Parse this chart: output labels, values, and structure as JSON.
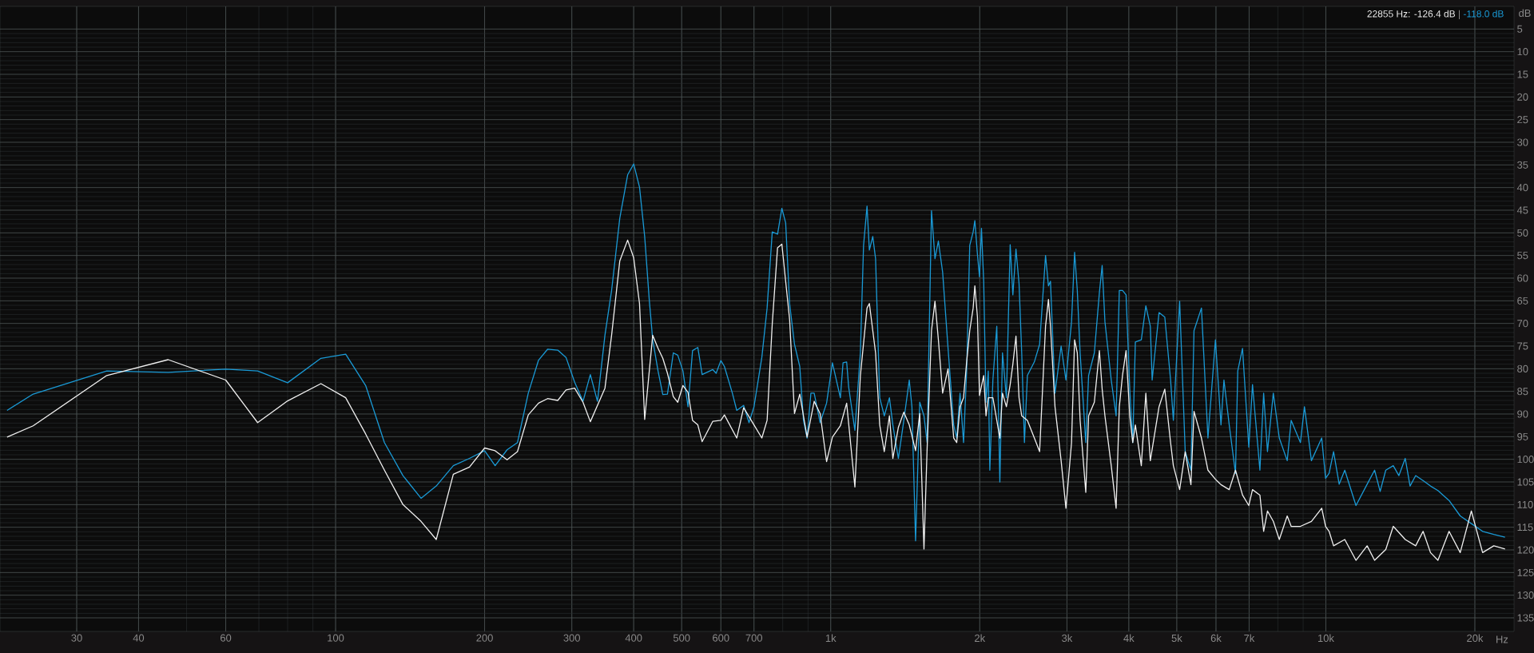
{
  "chart_data": {
    "type": "line",
    "xlabel": "Hz",
    "ylabel": "dB",
    "log": "x",
    "grid": true,
    "annotations": [
      "22855 Hz: -126.4 dB",
      "|",
      "-118.0 dB"
    ],
    "xlim": [
      21,
      24000
    ],
    "ylim": [
      -138,
      0
    ],
    "xticks": [
      30,
      40,
      60,
      100,
      200,
      300,
      400,
      500,
      600,
      700,
      {
        "value": 1000,
        "label": "1k"
      },
      {
        "value": 2000,
        "label": "2k"
      },
      {
        "value": 3000,
        "label": "3k"
      },
      {
        "value": 4000,
        "label": "4k"
      },
      {
        "value": 5000,
        "label": "5k"
      },
      {
        "value": 6000,
        "label": "6k"
      },
      {
        "value": 7000,
        "label": "7k"
      },
      {
        "value": 10000,
        "label": "10k"
      },
      {
        "value": 20000,
        "label": "20k"
      }
    ],
    "yticks": [
      {
        "value": -5,
        "label": "5"
      },
      {
        "value": -10,
        "label": "10"
      },
      {
        "value": -15,
        "label": "15"
      },
      {
        "value": -20,
        "label": "20"
      },
      {
        "value": -25,
        "label": "25"
      },
      {
        "value": -30,
        "label": "30"
      },
      {
        "value": -35,
        "label": "35"
      },
      {
        "value": -40,
        "label": "40"
      },
      {
        "value": -45,
        "label": "45"
      },
      {
        "value": -50,
        "label": "50"
      },
      {
        "value": -55,
        "label": "55"
      },
      {
        "value": -60,
        "label": "60"
      },
      {
        "value": -65,
        "label": "65"
      },
      {
        "value": -70,
        "label": "70"
      },
      {
        "value": -75,
        "label": "75"
      },
      {
        "value": -80,
        "label": "80"
      },
      {
        "value": -85,
        "label": "85"
      },
      {
        "value": -90,
        "label": "90"
      },
      {
        "value": -95,
        "label": "95"
      },
      {
        "value": -100,
        "label": "100"
      },
      {
        "value": -105,
        "label": "105"
      },
      {
        "value": -110,
        "label": "110"
      },
      {
        "value": -115,
        "label": "115"
      },
      {
        "value": -120,
        "label": "120"
      },
      {
        "value": -125,
        "label": "125"
      },
      {
        "value": -130,
        "label": "130"
      },
      {
        "value": -135,
        "label": "135"
      }
    ],
    "series": [
      {
        "color": "#1a9ad6",
        "x": [
          21.7,
          24.5,
          34.5,
          45.9,
          60,
          69.6,
          80,
          93.4,
          104.8,
          115,
          125.5,
          136.8,
          148.8,
          159.7,
          172.9,
          186.4,
          200,
          210,
          222,
          233,
          245,
          257,
          268,
          281,
          292,
          304,
          316,
          327,
          338,
          350,
          361,
          375,
          389,
          400,
          411,
          421,
          430,
          437,
          448,
          458,
          468,
          481,
          491,
          503,
          515,
          526,
          539,
          550,
          578,
          587,
          600,
          610,
          633,
          646,
          667,
          684,
          700,
          726,
          744,
          762,
          781,
          797,
          811,
          826,
          845,
          866,
          881,
          896,
          912,
          926,
          952,
          981,
          1008,
          1046,
          1059,
          1077,
          1087,
          1119,
          1148,
          1165,
          1184,
          1197,
          1216,
          1232,
          1256,
          1283,
          1314,
          1335,
          1370,
          1405,
          1441,
          1459,
          1484,
          1513,
          1543,
          1566,
          1598,
          1624,
          1650,
          1683,
          1726,
          1772,
          1797,
          1825,
          1855,
          1882,
          1909,
          1940,
          1955,
          1979,
          1998,
          2016,
          2037,
          2059,
          2081,
          2096,
          2126,
          2165,
          2196,
          2223,
          2264,
          2304,
          2333,
          2367,
          2401,
          2431,
          2462,
          2496,
          2578,
          2642,
          2716,
          2753,
          2779,
          2838,
          2920,
          2986,
          3065,
          3109,
          3148,
          3190,
          3275,
          3318,
          3408,
          3489,
          3534,
          3580,
          3687,
          3771,
          3828,
          3885,
          3950,
          4018,
          4074,
          4124,
          4240,
          4330,
          4421,
          4459,
          4604,
          4729,
          4858,
          4921,
          5067,
          5200,
          5340,
          5417,
          5608,
          5780,
          5985,
          6141,
          6227,
          6381,
          6570,
          6640,
          6788,
          6990,
          7111,
          7360,
          7490,
          7624,
          7834,
          8054,
          8356,
          8512,
          8887,
          9054,
          9352,
          9811,
          9990,
          10154,
          10367,
          10641,
          10921,
          11505,
          12118,
          12546,
          12874,
          13215,
          13684,
          14047,
          14468,
          14797,
          15187,
          15720,
          16272,
          16844,
          17740,
          18684,
          19679,
          20733,
          21841,
          23010
        ],
        "values": [
          -89.2,
          -85.6,
          -80.5,
          -80.8,
          -80.1,
          -80.5,
          -83.1,
          -77.7,
          -76.8,
          -83.7,
          -96.3,
          -103.6,
          -108.6,
          -105.9,
          -101.4,
          -99.8,
          -98.1,
          -101.4,
          -97.9,
          -96.3,
          -85.4,
          -78.1,
          -75.7,
          -75.9,
          -77.5,
          -83.0,
          -87.2,
          -81.3,
          -87.2,
          -72.6,
          -62.7,
          -46.8,
          -37.2,
          -34.8,
          -39.9,
          -50.8,
          -64.7,
          -73.6,
          -80.5,
          -85.7,
          -85.6,
          -76.5,
          -77.0,
          -80.5,
          -88.4,
          -76.0,
          -75.3,
          -81.3,
          -80.2,
          -81.0,
          -78.2,
          -79.5,
          -85.4,
          -89.2,
          -88.1,
          -91.9,
          -88.4,
          -77.5,
          -66.6,
          -49.8,
          -50.3,
          -44.6,
          -47.8,
          -65.6,
          -74.6,
          -79.5,
          -91.4,
          -95.3,
          -85.4,
          -85.4,
          -91.9,
          -87.6,
          -78.7,
          -86.4,
          -78.7,
          -78.5,
          -84.0,
          -93.6,
          -76.5,
          -52.8,
          -44.1,
          -53.8,
          -50.8,
          -55.7,
          -86.4,
          -90.4,
          -86.4,
          -92.4,
          -99.8,
          -91.4,
          -82.5,
          -88.4,
          -118.0,
          -87.4,
          -90.4,
          -96.3,
          -45.1,
          -55.7,
          -51.8,
          -58.7,
          -75.5,
          -92.4,
          -95.3,
          -85.4,
          -96.3,
          -80.5,
          -52.8,
          -49.8,
          -47.3,
          -54.8,
          -59.7,
          -49.0,
          -60.7,
          -87.4,
          -80.5,
          -102.4,
          -82.5,
          -70.6,
          -105.0,
          -76.5,
          -86.4,
          -52.6,
          -63.7,
          -53.6,
          -61.2,
          -76.5,
          -96.3,
          -81.5,
          -78.5,
          -74.6,
          -55.0,
          -61.7,
          -60.7,
          -85.4,
          -75.0,
          -82.5,
          -69.6,
          -54.3,
          -62.7,
          -76.5,
          -96.3,
          -81.5,
          -76.5,
          -63.2,
          -57.2,
          -69.6,
          -82.5,
          -90.4,
          -62.7,
          -62.7,
          -63.7,
          -84.5,
          -96.3,
          -74.1,
          -73.6,
          -66.1,
          -70.6,
          -82.5,
          -67.6,
          -68.6,
          -82.5,
          -91.4,
          -65.1,
          -98.3,
          -102.4,
          -71.6,
          -66.6,
          -95.3,
          -73.6,
          -92.4,
          -82.5,
          -92.4,
          -103.1,
          -80.5,
          -75.5,
          -97.3,
          -83.5,
          -102.4,
          -85.4,
          -98.3,
          -85.4,
          -95.3,
          -100.3,
          -91.4,
          -96.3,
          -88.4,
          -100.3,
          -95.3,
          -104.2,
          -103.1,
          -98.3,
          -105.5,
          -102.4,
          -110.2,
          -105.5,
          -102.4,
          -107.1,
          -102.4,
          -101.4,
          -103.6,
          -99.8,
          -105.9,
          -103.6,
          -104.7,
          -105.9,
          -106.9,
          -109.1,
          -112.5,
          -114.2,
          -115.9,
          -116.6,
          -117.2
        ]
      },
      {
        "color": "#f0f0f0",
        "x": [
          21.7,
          24.5,
          34.5,
          45.9,
          60,
          69.6,
          80,
          93.4,
          104.8,
          115,
          125.5,
          136.8,
          148.8,
          159.7,
          172.9,
          186.4,
          200,
          210,
          222,
          233,
          245,
          257,
          268,
          281,
          292,
          304,
          316,
          327,
          350,
          361,
          375,
          389,
          400,
          411,
          421,
          437,
          448,
          458,
          468,
          481,
          491,
          503,
          515,
          526,
          539,
          550,
          578,
          600,
          610,
          646,
          667,
          700,
          726,
          744,
          762,
          781,
          797,
          811,
          826,
          845,
          866,
          881,
          896,
          926,
          952,
          981,
          1008,
          1046,
          1077,
          1119,
          1148,
          1184,
          1197,
          1232,
          1256,
          1283,
          1314,
          1335,
          1370,
          1405,
          1441,
          1484,
          1513,
          1543,
          1566,
          1598,
          1624,
          1650,
          1683,
          1726,
          1772,
          1797,
          1825,
          1855,
          1882,
          1909,
          1940,
          1955,
          1979,
          1998,
          2037,
          2059,
          2081,
          2126,
          2165,
          2196,
          2223,
          2264,
          2304,
          2333,
          2367,
          2401,
          2431,
          2496,
          2578,
          2642,
          2716,
          2753,
          2779,
          2838,
          2920,
          2986,
          3065,
          3109,
          3148,
          3190,
          3275,
          3318,
          3408,
          3489,
          3534,
          3580,
          3687,
          3771,
          3828,
          3885,
          3950,
          4018,
          4074,
          4124,
          4240,
          4330,
          4421,
          4604,
          4729,
          4858,
          4921,
          5067,
          5200,
          5340,
          5417,
          5608,
          5780,
          5985,
          6141,
          6381,
          6570,
          6788,
          6990,
          7111,
          7360,
          7490,
          7624,
          7834,
          8054,
          8356,
          8512,
          8887,
          9352,
          9811,
          9990,
          10154,
          10367,
          10921,
          11505,
          12118,
          12546,
          13215,
          13684,
          14468,
          15187,
          15720,
          16272,
          16844,
          17740,
          18684,
          19679,
          20733,
          21841,
          23010
        ],
        "values": [
          -95.1,
          -92.6,
          -81.5,
          -78.0,
          -82.5,
          -91.9,
          -87.1,
          -83.3,
          -86.4,
          -94.4,
          -102.4,
          -110.0,
          -113.7,
          -117.7,
          -103.3,
          -101.7,
          -97.5,
          -98.1,
          -100.1,
          -98.3,
          -90.2,
          -87.6,
          -86.6,
          -87.0,
          -84.7,
          -84.3,
          -87.4,
          -91.7,
          -84.3,
          -72.6,
          -56.2,
          -51.6,
          -55.5,
          -65.6,
          -91.2,
          -72.6,
          -75.5,
          -77.7,
          -81.0,
          -86.2,
          -87.4,
          -83.7,
          -85.2,
          -91.4,
          -92.4,
          -96.1,
          -91.6,
          -91.4,
          -90.2,
          -95.3,
          -88.6,
          -92.4,
          -95.3,
          -91.4,
          -70.1,
          -53.3,
          -52.5,
          -60.7,
          -69.1,
          -89.9,
          -85.6,
          -90.4,
          -95.1,
          -87.2,
          -89.9,
          -100.5,
          -95.1,
          -92.6,
          -87.6,
          -106.1,
          -81.5,
          -66.6,
          -65.6,
          -76.5,
          -92.4,
          -98.3,
          -90.4,
          -99.8,
          -92.9,
          -89.6,
          -92.4,
          -98.1,
          -89.9,
          -119.8,
          -97.5,
          -71.6,
          -65.1,
          -73.6,
          -85.4,
          -80.0,
          -95.3,
          -96.3,
          -88.4,
          -86.4,
          -78.5,
          -71.6,
          -66.6,
          -61.7,
          -68.6,
          -85.9,
          -81.5,
          -90.4,
          -86.4,
          -86.4,
          -91.4,
          -95.3,
          -85.4,
          -88.4,
          -83.5,
          -79.0,
          -72.8,
          -86.4,
          -90.4,
          -91.4,
          -95.3,
          -98.3,
          -70.6,
          -64.7,
          -70.6,
          -88.4,
          -100.3,
          -110.8,
          -96.3,
          -73.6,
          -76.5,
          -91.4,
          -107.3,
          -90.4,
          -87.4,
          -76.0,
          -84.5,
          -90.4,
          -101.4,
          -110.8,
          -88.4,
          -81.5,
          -76.0,
          -90.4,
          -96.3,
          -92.4,
          -101.4,
          -85.4,
          -100.3,
          -88.4,
          -84.5,
          -96.3,
          -101.4,
          -106.7,
          -98.3,
          -105.6,
          -89.4,
          -95.3,
          -102.4,
          -104.4,
          -105.6,
          -106.7,
          -102.4,
          -107.9,
          -110.2,
          -106.7,
          -107.9,
          -115.9,
          -111.4,
          -113.7,
          -117.7,
          -112.5,
          -114.8,
          -114.8,
          -113.7,
          -110.8,
          -114.8,
          -115.9,
          -119.1,
          -117.7,
          -122.3,
          -119.1,
          -122.3,
          -119.9,
          -114.8,
          -117.7,
          -119.1,
          -115.9,
          -120.6,
          -122.3,
          -115.9,
          -120.6,
          -111.4,
          -120.6,
          -119.1,
          -119.8
        ]
      }
    ]
  }
}
